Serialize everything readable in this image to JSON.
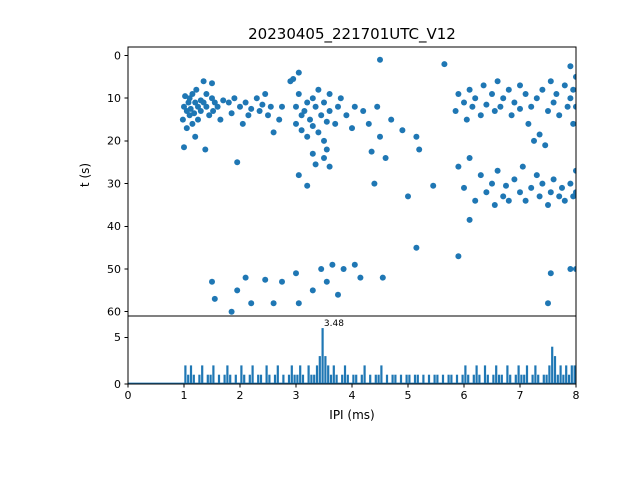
{
  "chart_data": [
    {
      "type": "scatter",
      "title": "20230405_221701UTC_V12",
      "ylabel": "t (s)",
      "xlim": [
        0,
        8
      ],
      "ylim": [
        -2,
        61
      ],
      "y_inverted": true,
      "yticks": [
        0,
        10,
        20,
        30,
        40,
        50,
        60
      ],
      "marker_color": "#1f77b4",
      "points": [
        [
          0.98,
          15
        ],
        [
          1.0,
          12
        ],
        [
          1.02,
          9.5
        ],
        [
          1.05,
          13
        ],
        [
          1.05,
          17
        ],
        [
          1.0,
          21.5
        ],
        [
          1.08,
          11
        ],
        [
          1.1,
          10
        ],
        [
          1.1,
          14
        ],
        [
          1.12,
          12.5
        ],
        [
          1.15,
          9
        ],
        [
          1.15,
          16
        ],
        [
          1.18,
          13.5
        ],
        [
          1.2,
          11
        ],
        [
          1.2,
          19
        ],
        [
          1.22,
          8
        ],
        [
          1.25,
          12
        ],
        [
          1.25,
          15
        ],
        [
          1.3,
          10.5
        ],
        [
          1.3,
          13
        ],
        [
          1.35,
          6
        ],
        [
          1.35,
          11
        ],
        [
          1.38,
          22
        ],
        [
          1.4,
          9
        ],
        [
          1.4,
          12
        ],
        [
          1.45,
          14
        ],
        [
          1.5,
          6.5
        ],
        [
          1.5,
          10
        ],
        [
          1.52,
          13
        ],
        [
          1.55,
          11
        ],
        [
          1.6,
          12
        ],
        [
          1.65,
          15
        ],
        [
          1.7,
          10.5
        ],
        [
          1.8,
          11
        ],
        [
          1.85,
          13.5
        ],
        [
          1.9,
          10
        ],
        [
          1.95,
          25
        ],
        [
          2.0,
          12
        ],
        [
          2.05,
          16
        ],
        [
          2.1,
          11
        ],
        [
          2.15,
          14
        ],
        [
          2.2,
          12.5
        ],
        [
          2.3,
          10
        ],
        [
          2.35,
          13
        ],
        [
          2.4,
          11.5
        ],
        [
          2.45,
          9
        ],
        [
          2.5,
          14
        ],
        [
          2.55,
          12
        ],
        [
          2.6,
          18
        ],
        [
          2.7,
          15
        ],
        [
          2.75,
          12
        ],
        [
          2.9,
          6
        ],
        [
          2.95,
          5.5
        ],
        [
          3.0,
          12
        ],
        [
          3.0,
          16
        ],
        [
          3.05,
          4
        ],
        [
          3.05,
          9
        ],
        [
          3.1,
          14
        ],
        [
          3.1,
          17.5
        ],
        [
          3.15,
          13
        ],
        [
          3.2,
          11
        ],
        [
          3.2,
          19
        ],
        [
          3.25,
          15
        ],
        [
          3.3,
          10
        ],
        [
          3.3,
          16.5
        ],
        [
          3.35,
          12
        ],
        [
          3.4,
          8
        ],
        [
          3.4,
          18
        ],
        [
          3.45,
          14
        ],
        [
          3.5,
          11
        ],
        [
          3.5,
          20
        ],
        [
          3.55,
          15.5
        ],
        [
          3.6,
          9
        ],
        [
          3.6,
          13
        ],
        [
          3.7,
          16
        ],
        [
          3.75,
          12
        ],
        [
          3.8,
          10
        ],
        [
          3.9,
          14
        ],
        [
          4.0,
          17
        ],
        [
          4.05,
          12
        ],
        [
          3.3,
          23
        ],
        [
          3.35,
          25.5
        ],
        [
          3.5,
          24
        ],
        [
          3.55,
          22
        ],
        [
          3.6,
          26
        ],
        [
          3.05,
          28
        ],
        [
          3.2,
          30.5
        ],
        [
          4.35,
          22.5
        ],
        [
          4.4,
          30
        ],
        [
          4.6,
          24
        ],
        [
          4.2,
          13
        ],
        [
          4.3,
          16
        ],
        [
          4.45,
          12
        ],
        [
          4.5,
          19
        ],
        [
          4.7,
          15
        ],
        [
          4.9,
          17.5
        ],
        [
          5.15,
          19
        ],
        [
          4.5,
          1
        ],
        [
          5.65,
          2
        ],
        [
          7.9,
          2.5
        ],
        [
          5.2,
          22
        ],
        [
          5.0,
          33
        ],
        [
          5.45,
          30.5
        ],
        [
          5.15,
          45
        ],
        [
          5.9,
          47
        ],
        [
          6.1,
          38.5
        ],
        [
          5.85,
          13
        ],
        [
          5.9,
          9
        ],
        [
          6.0,
          11
        ],
        [
          6.05,
          15
        ],
        [
          6.1,
          8
        ],
        [
          6.15,
          12
        ],
        [
          6.2,
          10
        ],
        [
          6.3,
          14
        ],
        [
          6.35,
          7
        ],
        [
          6.4,
          11.5
        ],
        [
          6.5,
          9
        ],
        [
          6.55,
          13
        ],
        [
          6.6,
          6
        ],
        [
          6.65,
          12
        ],
        [
          6.7,
          10
        ],
        [
          6.8,
          8
        ],
        [
          6.85,
          14
        ],
        [
          6.9,
          11
        ],
        [
          7.0,
          7
        ],
        [
          7.0,
          12.5
        ],
        [
          7.1,
          9
        ],
        [
          7.15,
          16
        ],
        [
          7.2,
          12
        ],
        [
          7.25,
          20
        ],
        [
          7.3,
          10
        ],
        [
          7.35,
          18.5
        ],
        [
          7.4,
          8
        ],
        [
          7.45,
          21
        ],
        [
          7.5,
          13
        ],
        [
          7.55,
          6
        ],
        [
          7.6,
          11
        ],
        [
          7.65,
          9
        ],
        [
          7.7,
          14
        ],
        [
          7.8,
          7
        ],
        [
          7.85,
          12
        ],
        [
          7.9,
          10
        ],
        [
          7.95,
          8
        ],
        [
          7.95,
          16
        ],
        [
          8.0,
          5
        ],
        [
          8.0,
          12
        ],
        [
          5.9,
          26
        ],
        [
          6.0,
          31
        ],
        [
          6.1,
          24
        ],
        [
          6.2,
          34
        ],
        [
          6.3,
          28
        ],
        [
          6.4,
          32
        ],
        [
          6.5,
          30
        ],
        [
          6.55,
          35
        ],
        [
          6.6,
          27
        ],
        [
          6.7,
          33
        ],
        [
          6.75,
          30.5
        ],
        [
          6.8,
          34
        ],
        [
          6.9,
          29
        ],
        [
          7.0,
          32
        ],
        [
          7.05,
          26
        ],
        [
          7.1,
          34
        ],
        [
          7.2,
          31
        ],
        [
          7.3,
          28
        ],
        [
          7.35,
          33
        ],
        [
          7.4,
          30
        ],
        [
          7.5,
          35
        ],
        [
          7.55,
          32
        ],
        [
          7.6,
          29
        ],
        [
          7.7,
          33
        ],
        [
          7.75,
          31
        ],
        [
          7.8,
          34
        ],
        [
          7.9,
          30
        ],
        [
          7.95,
          33
        ],
        [
          8.0,
          27
        ],
        [
          8.0,
          32
        ],
        [
          1.5,
          53
        ],
        [
          1.55,
          57
        ],
        [
          1.85,
          60
        ],
        [
          1.95,
          55
        ],
        [
          2.1,
          52
        ],
        [
          2.2,
          58
        ],
        [
          2.45,
          52.5
        ],
        [
          2.6,
          58
        ],
        [
          2.75,
          53
        ],
        [
          3.0,
          51
        ],
        [
          3.05,
          58
        ],
        [
          3.3,
          55
        ],
        [
          3.45,
          50
        ],
        [
          3.55,
          53
        ],
        [
          3.65,
          49
        ],
        [
          3.75,
          56
        ],
        [
          3.85,
          50
        ],
        [
          4.05,
          49
        ],
        [
          4.15,
          52
        ],
        [
          4.55,
          52
        ],
        [
          7.5,
          58
        ],
        [
          7.55,
          51
        ],
        [
          7.9,
          50
        ],
        [
          8.0,
          50
        ]
      ]
    },
    {
      "type": "bar",
      "xlabel": "IPI (ms)",
      "xlim": [
        0,
        8
      ],
      "ylim": [
        0,
        7.3
      ],
      "yticks": [
        0,
        5
      ],
      "xticks": [
        0,
        1,
        2,
        3,
        4,
        5,
        6,
        7,
        8
      ],
      "bin_start": 0,
      "bin_width": 0.05,
      "bar_color": "#1f77b4",
      "annotation": {
        "text": "3.48",
        "x": 3.48,
        "y": 6.2
      },
      "counts": [
        0,
        0,
        0,
        0,
        0,
        0,
        0,
        0,
        0,
        0,
        0,
        0,
        0,
        0,
        0,
        0,
        0,
        0,
        0,
        0,
        2,
        1,
        2,
        1,
        0,
        1,
        2,
        0,
        1,
        1,
        2,
        0,
        1,
        0,
        1,
        2,
        1,
        0,
        1,
        0,
        2,
        1,
        0,
        1,
        2,
        0,
        1,
        1,
        0,
        2,
        1,
        0,
        1,
        2,
        0,
        1,
        0,
        1,
        2,
        1,
        1,
        2,
        1,
        0,
        2,
        1,
        1,
        2,
        3,
        6,
        3,
        2,
        1,
        2,
        1,
        0,
        1,
        2,
        1,
        0,
        1,
        1,
        0,
        1,
        2,
        0,
        1,
        0,
        1,
        1,
        2,
        0,
        1,
        0,
        1,
        1,
        0,
        1,
        0,
        1,
        1,
        0,
        1,
        1,
        0,
        1,
        0,
        1,
        0,
        1,
        1,
        0,
        1,
        0,
        1,
        1,
        0,
        1,
        0,
        1,
        2,
        1,
        0,
        1,
        2,
        1,
        0,
        2,
        1,
        0,
        1,
        2,
        1,
        1,
        0,
        2,
        1,
        0,
        1,
        2,
        1,
        1,
        2,
        0,
        1,
        2,
        1,
        0,
        1,
        1,
        2,
        4,
        3,
        1,
        2,
        1,
        2,
        1,
        2,
        2
      ]
    }
  ],
  "colors": {
    "marker": "#1f77b4",
    "axis": "#000000",
    "background": "#ffffff"
  }
}
